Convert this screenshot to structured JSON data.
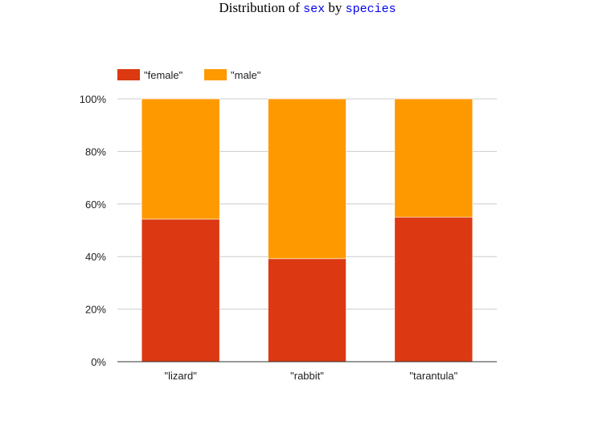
{
  "title": {
    "prefix": "Distribution of",
    "var1": "sex",
    "middle": "by",
    "var2": "species"
  },
  "colors": {
    "female": "#dc3912",
    "male": "#ff9900",
    "grid": "#cccccc",
    "axis": "#333333"
  },
  "chart_data": {
    "type": "bar",
    "stacked": true,
    "normalized": true,
    "categories": [
      "\"lizard\"",
      "\"rabbit\"",
      "\"tarantula\""
    ],
    "series": [
      {
        "name": "\"female\"",
        "values": [
          54.2,
          39.2,
          55.0
        ]
      },
      {
        "name": "\"male\"",
        "values": [
          45.8,
          60.8,
          45.0
        ]
      }
    ],
    "ylim": [
      0,
      100
    ],
    "yticks": [
      "0%",
      "20%",
      "40%",
      "60%",
      "80%",
      "100%"
    ],
    "grid": true,
    "legend_position": "top-left"
  }
}
